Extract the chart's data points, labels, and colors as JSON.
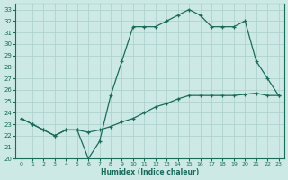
{
  "xlabel": "Humidex (Indice chaleur)",
  "bg_color": "#cce9e5",
  "line_color": "#1a6b5a",
  "grid_color": "#aacfcb",
  "xlim": [
    -0.5,
    23.5
  ],
  "ylim": [
    20,
    33.5
  ],
  "yticks": [
    20,
    21,
    22,
    23,
    24,
    25,
    26,
    27,
    28,
    29,
    30,
    31,
    32,
    33
  ],
  "xticks": [
    0,
    1,
    2,
    3,
    4,
    5,
    6,
    7,
    8,
    9,
    10,
    11,
    12,
    13,
    14,
    15,
    16,
    17,
    18,
    19,
    20,
    21,
    22,
    23
  ],
  "line1_x": [
    0,
    1,
    2,
    3,
    4,
    5,
    6,
    7,
    8,
    9,
    10,
    11,
    12,
    13,
    14,
    15,
    16,
    17,
    18,
    19,
    20,
    21,
    22,
    23
  ],
  "line1_y": [
    23.5,
    23.0,
    22.5,
    22.0,
    22.5,
    22.5,
    20.0,
    21.5,
    25.5,
    28.5,
    31.5,
    31.5,
    31.5,
    32.0,
    32.5,
    33.0,
    32.5,
    31.5,
    31.5,
    31.5,
    32.0,
    28.5,
    27.0,
    25.5
  ],
  "line2_x": [
    0,
    1,
    2,
    3,
    4,
    5,
    6,
    7,
    8,
    9,
    10,
    11,
    12,
    13,
    14,
    15,
    16,
    17,
    18,
    19,
    20,
    21,
    22,
    23
  ],
  "line2_y": [
    23.5,
    23.0,
    22.5,
    22.0,
    22.5,
    22.5,
    22.3,
    22.5,
    22.8,
    23.2,
    23.5,
    24.0,
    24.5,
    24.8,
    25.2,
    25.5,
    25.5,
    25.5,
    25.5,
    25.5,
    25.6,
    25.7,
    25.5,
    25.5
  ],
  "lw": 0.9,
  "ms": 3.0,
  "mew": 0.9
}
